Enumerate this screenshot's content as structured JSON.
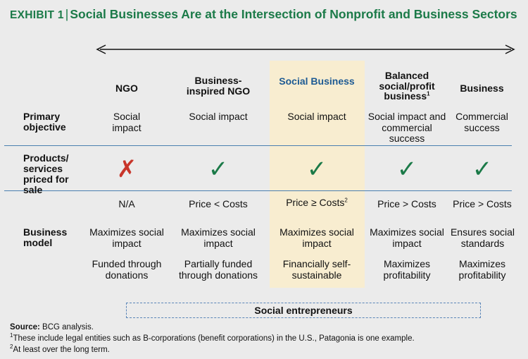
{
  "title": {
    "exhibit": "Exhibit 1",
    "separator": "|",
    "text": "Social Businesses Are at the Intersection of Nonprofit and Business Sectors"
  },
  "colors": {
    "title_green": "#1b7a48",
    "highlight_fill": "#f8edd0",
    "social_blue": "#1d5a93",
    "check_green": "#1b7a48",
    "cross_red": "#c8352a"
  },
  "columns": [
    {
      "header": "NGO",
      "objective": "Social impact",
      "products": "cross",
      "pricing": "N/A",
      "model": "Maximizes social impact",
      "funding": "Funded through donations"
    },
    {
      "header": "Business-inspired NGO",
      "objective": "Social impact",
      "products": "check",
      "pricing": "Price < Costs",
      "model": "Maximizes social impact",
      "funding": "Partially funded through donations"
    },
    {
      "header": "Social Business",
      "objective": "Social impact",
      "products": "check",
      "pricing": "Price ≥ Costs",
      "pricing_sup": "2",
      "model": "Maximizes social impact",
      "funding": "Financially self-sustainable"
    },
    {
      "header": "Balanced social/profit business",
      "header_sup": "1",
      "objective": "Social impact and commercial success",
      "products": "check",
      "pricing": "Price > Costs",
      "model": "Maximizes social impact",
      "funding": "Maximizes profitability"
    },
    {
      "header": "Business",
      "objective": "Commercial success",
      "products": "check",
      "pricing": "Price > Costs",
      "model": "Ensures social standards",
      "funding": "Maximizes profitability"
    }
  ],
  "rows": {
    "objective": "Primary objective",
    "products": "Products/ services priced for sale",
    "model": "Business model"
  },
  "icons": {
    "check": "check-icon",
    "cross": "cross-icon"
  },
  "social_entrepreneurs": "Social entrepreneurs",
  "footnotes": {
    "source_label": "Source:",
    "source_text": "BCG analysis.",
    "note1_num": "1",
    "note1": "These include legal entities such as B-corporations (benefit corporations) in the U.S., Patagonia is one example.",
    "note2_num": "2",
    "note2": "At least over the long term."
  }
}
